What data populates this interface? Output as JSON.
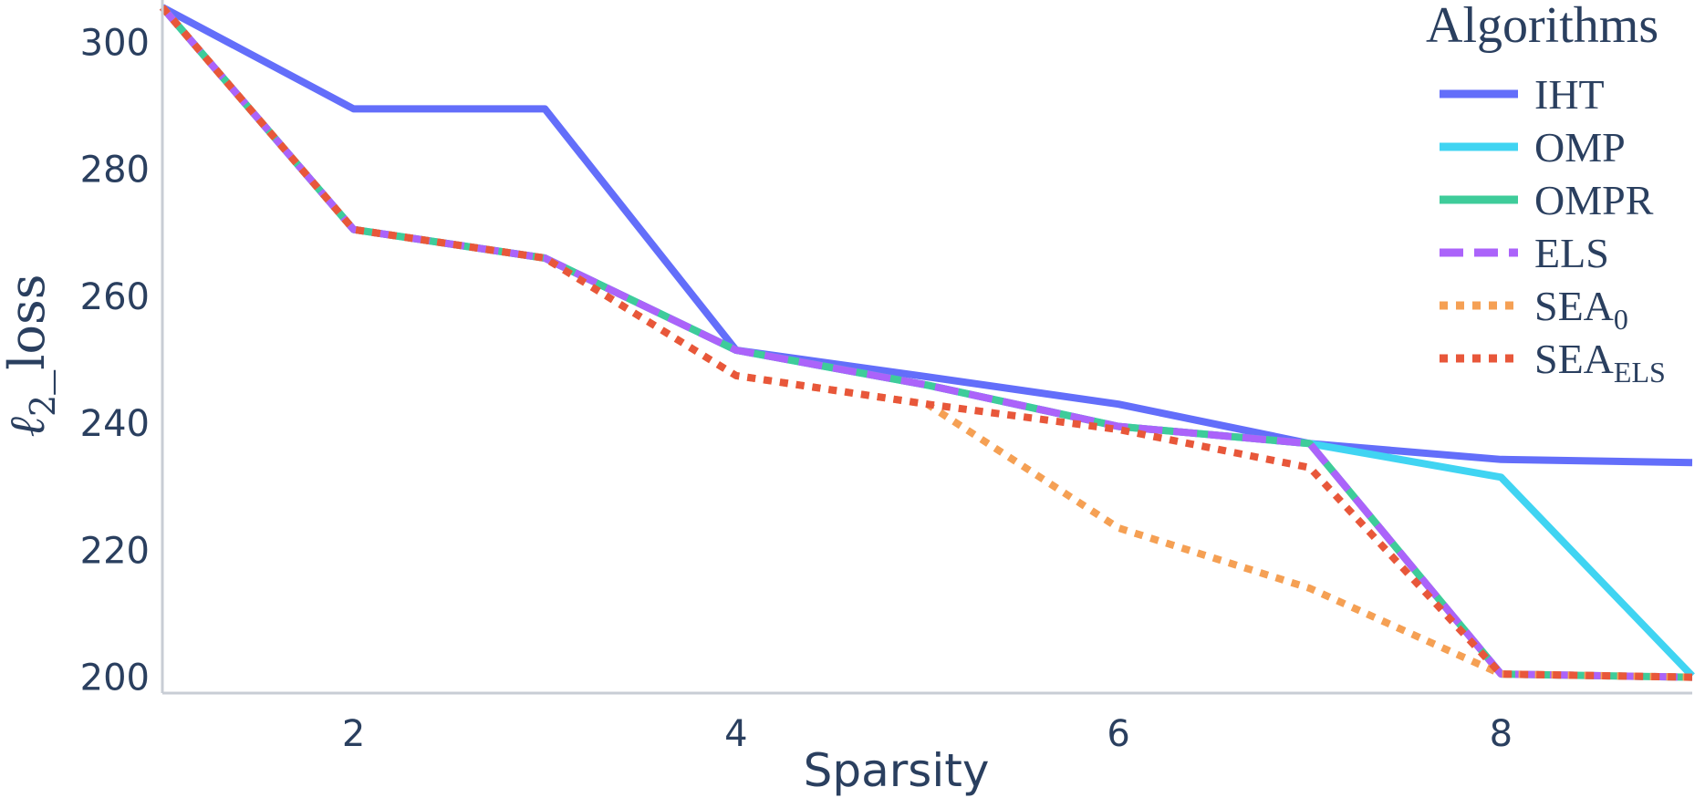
{
  "chart_data": {
    "type": "line",
    "xlabel": "Sparsity",
    "ylabel": "ℓ2_loss",
    "ylabel_parts": {
      "main": "ℓ",
      "sub": "2",
      "rest": "_loss"
    },
    "x_ticks": [
      2,
      4,
      6,
      8
    ],
    "y_ticks": [
      200,
      220,
      240,
      260,
      280,
      300
    ],
    "xlim": [
      1,
      9
    ],
    "ylim": [
      197.5,
      305.5
    ],
    "grid": false,
    "legend": {
      "title": "Algorithms",
      "placement": "top-right"
    },
    "x": [
      1,
      2,
      3,
      4,
      5,
      6,
      7,
      8,
      9
    ],
    "series": [
      {
        "name": "IHT",
        "name_main": "IHT",
        "name_sub": "",
        "color": "#636efa",
        "dash": "solid",
        "values": [
          305.5,
          289.5,
          289.5,
          251.5,
          247.3,
          243.0,
          236.8,
          234.3,
          233.8
        ]
      },
      {
        "name": "OMP",
        "name_main": "OMP",
        "name_sub": "",
        "color": "#40d4f2",
        "dash": "solid",
        "values": [
          305.5,
          270.5,
          266.0,
          251.5,
          246.0,
          239.5,
          236.8,
          231.5,
          200.2
        ]
      },
      {
        "name": "OMPR",
        "name_main": "OMPR",
        "name_sub": "",
        "color": "#3ecc9a",
        "dash": "solid",
        "values": [
          305.5,
          270.5,
          266.0,
          251.5,
          246.0,
          239.5,
          236.8,
          200.5,
          200.0
        ]
      },
      {
        "name": "ELS",
        "name_main": "ELS",
        "name_sub": "",
        "color": "#ab63fa",
        "dash": "dash",
        "values": [
          305.5,
          270.5,
          266.0,
          251.5,
          246.0,
          239.5,
          236.8,
          200.5,
          200.0
        ]
      },
      {
        "name": "SEA0",
        "name_main": "SEA",
        "name_sub": "0",
        "color": "#f5a054",
        "dash": "dot",
        "values": [
          305.5,
          270.5,
          266.0,
          247.5,
          243.0,
          223.5,
          214.0,
          200.5,
          200.0
        ]
      },
      {
        "name": "SEAELS",
        "name_main": "SEA",
        "name_sub": "ELS",
        "color": "#e8573a",
        "dash": "dot",
        "values": [
          305.5,
          270.5,
          266.0,
          247.5,
          243.0,
          239.0,
          233.0,
          200.5,
          200.0
        ]
      }
    ]
  }
}
